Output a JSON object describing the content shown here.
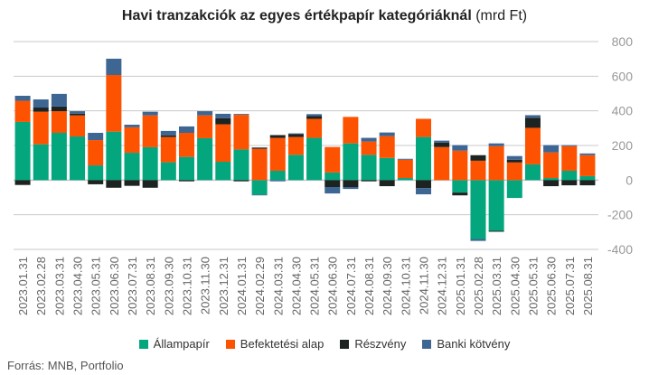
{
  "chart_data": {
    "type": "bar",
    "stacked": true,
    "title": "Havi tranzakciók az egyes értékpapír kategóriáknál",
    "title_unit": "(mrd Ft)",
    "ylim": [
      -400,
      800
    ],
    "yticks": [
      800,
      600,
      400,
      200,
      0,
      -200,
      -400
    ],
    "grid": true,
    "legend_position": "bottom",
    "categories": [
      "2023.01.31",
      "2023.02.28",
      "2023.03.31",
      "2023.04.30",
      "2023.05.31",
      "2023.06.30",
      "2023.07.31",
      "2023.08.31",
      "2023.09.30",
      "2023.10.31",
      "2023.11.30",
      "2023.12.31",
      "2024.01.31",
      "2024.02.29",
      "2024.03.31",
      "2024.04.30",
      "2024.05.31",
      "2024.06.30",
      "2024.07.31",
      "2024.08.31",
      "2024.09.30",
      "2024.10.31",
      "2024.11.30",
      "2024.12.31",
      "2025.01.31",
      "2025.02.28",
      "2025.03.31",
      "2025.04.30",
      "2025.05.31",
      "2025.06.30",
      "2025.07.31",
      "2025.08.31"
    ],
    "series": [
      {
        "name": "Állampapír",
        "color": "#04a67e",
        "values": [
          336,
          207,
          273,
          252,
          85,
          280,
          158,
          190,
          103,
          134,
          242,
          106,
          177,
          -84,
          54,
          146,
          244,
          44,
          212,
          146,
          128,
          12,
          249,
          0,
          -72,
          -340,
          -293,
          -103,
          91,
          12,
          54,
          23
        ]
      },
      {
        "name": "Befektetési alap",
        "color": "#fd5200",
        "values": [
          122,
          188,
          125,
          122,
          146,
          327,
          147,
          184,
          146,
          139,
          132,
          216,
          200,
          181,
          190,
          103,
          110,
          147,
          153,
          77,
          126,
          106,
          105,
          191,
          170,
          112,
          196,
          102,
          211,
          148,
          142,
          121
        ]
      },
      {
        "name": "Részvény",
        "color": "#1c2320",
        "values": [
          -28,
          24,
          27,
          9,
          -24,
          -44,
          -33,
          -44,
          10,
          -7,
          0,
          35,
          -7,
          7,
          16,
          16,
          16,
          -40,
          -40,
          -7,
          -35,
          0,
          -46,
          26,
          -16,
          32,
          -5,
          16,
          58,
          -35,
          -30,
          -30
        ]
      },
      {
        "name": "Banki kötvény",
        "color": "#3d6693",
        "values": [
          29,
          47,
          73,
          15,
          42,
          94,
          15,
          21,
          25,
          37,
          24,
          26,
          5,
          -4,
          -7,
          5,
          11,
          -37,
          -11,
          21,
          21,
          5,
          -36,
          11,
          32,
          -11,
          16,
          21,
          15,
          42,
          6,
          10
        ]
      }
    ]
  },
  "source": "Forrás: MNB, Portfolio"
}
